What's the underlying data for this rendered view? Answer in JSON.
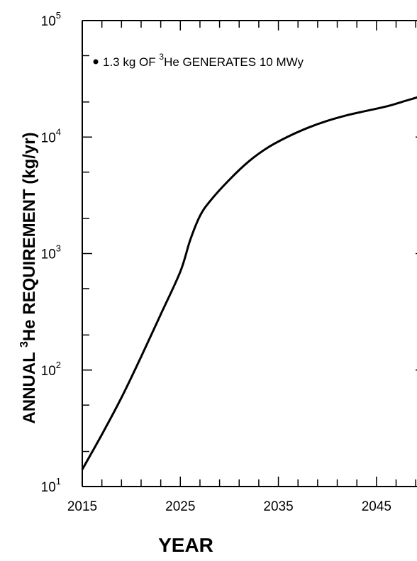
{
  "chart_data": {
    "type": "line",
    "xlabel": "YEAR",
    "ylabel_prefix": "ANNUAL ",
    "ylabel_sup": "3",
    "ylabel_suffix": "He REQUIREMENT (kg/yr)",
    "y_scale": "log",
    "xlim": [
      2015,
      2050
    ],
    "ylim": [
      10,
      100000
    ],
    "grid": false,
    "x_ticks": [
      2015,
      2025,
      2035,
      2045
    ],
    "x_tick_labels": [
      "2015",
      "2025",
      "2035",
      "2045"
    ],
    "y_ticks": [
      10,
      100,
      1000,
      10000,
      100000
    ],
    "y_tick_labels": [
      {
        "base": "10",
        "exp": "1"
      },
      {
        "base": "10",
        "exp": "2"
      },
      {
        "base": "10",
        "exp": "3"
      },
      {
        "base": "10",
        "exp": "4"
      },
      {
        "base": "10",
        "exp": "5"
      }
    ],
    "annotation": {
      "bullet": "•",
      "pre": "1.3 kg OF ",
      "sup": "3",
      "post": "He GENERATES 10 MWy"
    },
    "series": [
      {
        "x": [
          2015,
          2017,
          2019,
          2021,
          2023,
          2025,
          2026,
          2027,
          2028,
          2030,
          2032,
          2034,
          2036,
          2038,
          2040,
          2042,
          2044,
          2046,
          2048,
          2050
        ],
        "y": [
          14,
          28,
          58,
          130,
          300,
          700,
          1300,
          2100,
          2800,
          4300,
          6200,
          8200,
          10100,
          12000,
          13800,
          15400,
          16800,
          18300,
          20500,
          23000
        ]
      }
    ]
  }
}
